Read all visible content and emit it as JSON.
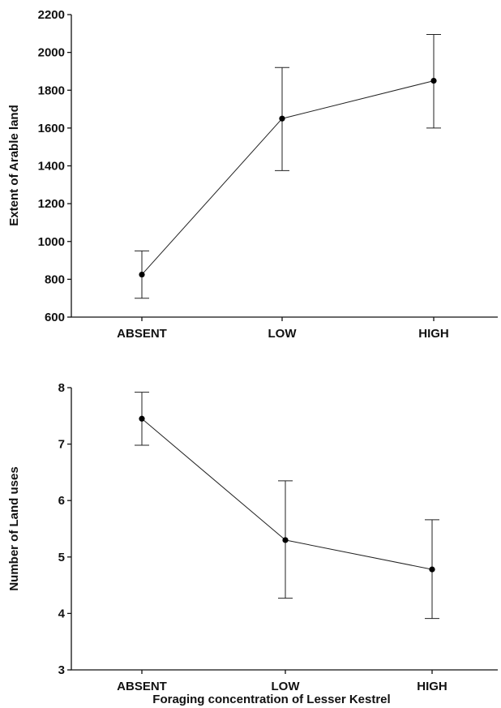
{
  "chart_data": [
    {
      "type": "line",
      "title": "",
      "xlabel": "",
      "ylabel": "Extent of Arable land",
      "categories": [
        "ABSENT",
        "LOW",
        "HIGH"
      ],
      "ylim": [
        600,
        2200
      ],
      "yticks": [
        "600",
        "800",
        "1000",
        "1200",
        "1400",
        "1600",
        "1800",
        "2000",
        "2200"
      ],
      "series": [
        {
          "name": "",
          "values": [
            825,
            1650,
            1850
          ],
          "err_low": [
            700,
            1375,
            1600
          ],
          "err_high": [
            950,
            1920,
            2095
          ]
        }
      ],
      "grid": false
    },
    {
      "type": "line",
      "title": "",
      "xlabel": "Foraging concentration of Lesser Kestrel",
      "ylabel": "Number of Land uses",
      "categories": [
        "ABSENT",
        "LOW",
        "HIGH"
      ],
      "ylim": [
        3,
        8
      ],
      "yticks": [
        "3",
        "4",
        "5",
        "6",
        "7",
        "8"
      ],
      "series": [
        {
          "name": "",
          "values": [
            7.45,
            5.3,
            4.78
          ],
          "err_low": [
            6.98,
            4.27,
            3.91
          ],
          "err_high": [
            7.92,
            6.35,
            5.66
          ]
        }
      ],
      "grid": false
    }
  ]
}
